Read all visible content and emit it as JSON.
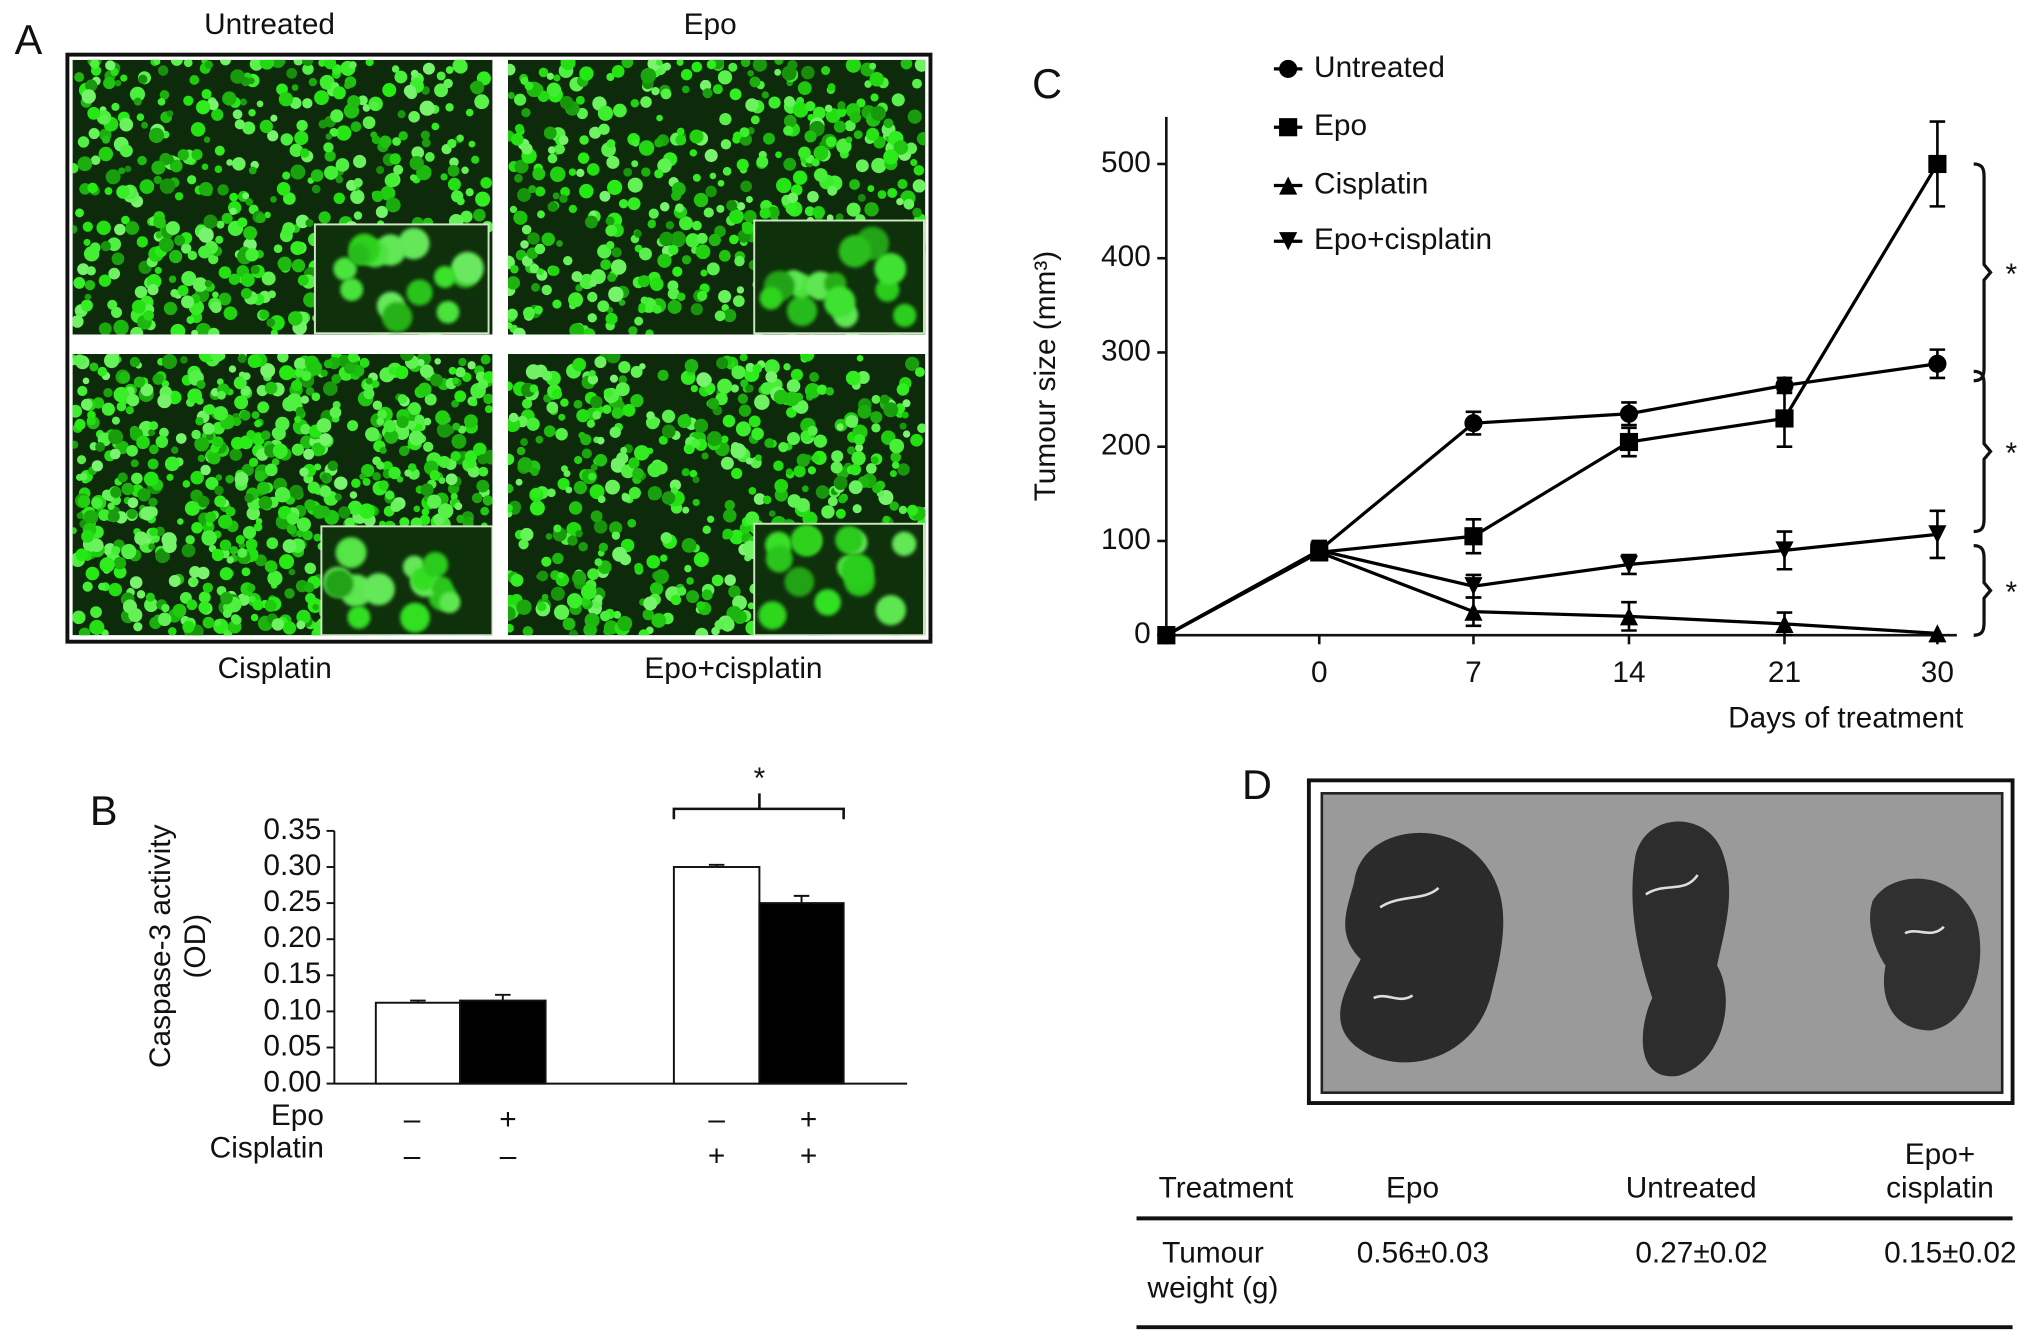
{
  "panels": [
    "A",
    "B",
    "C",
    "D"
  ],
  "micrographs": [
    "Untreated",
    "Epo",
    "Cisplatin",
    "Epo+cisplatin"
  ],
  "chart_data": [
    {
      "type": "bar",
      "y_label": [
        "Caspase-3 activity",
        "(OD)"
      ],
      "values": [
        0.112,
        0.115,
        0.3,
        0.25
      ],
      "errors": [
        0.003,
        0.008,
        0.003,
        0.01
      ],
      "colors": [
        "#ffffff",
        "#000000",
        "#ffffff",
        "#000000"
      ],
      "conditions": [
        {
          "name": "Epo",
          "signs": [
            "–",
            "+",
            "–",
            "+"
          ]
        },
        {
          "name": "Cisplatin",
          "signs": [
            "–",
            "–",
            "+",
            "+"
          ]
        }
      ],
      "ylim": [
        0,
        0.35
      ],
      "yticks": [
        {
          "value": 0,
          "label": "0.00"
        },
        0.05,
        {
          "value": 0.1,
          "label": "0.10"
        },
        0.15,
        {
          "value": 0.2,
          "label": "0.20"
        },
        0.25,
        {
          "value": 0.3,
          "label": "0.30"
        },
        0.35
      ],
      "annotation": "*"
    },
    {
      "type": "line",
      "x_label": "Days of treatment",
      "y_label": "Tumour size (mm³)",
      "categories": [
        null,
        "0",
        "7",
        "14",
        "21",
        "30"
      ],
      "series": [
        {
          "name": "Untreated",
          "marker": "circle",
          "color": "#000000",
          "values": [
            0,
            90,
            225,
            235,
            265,
            288
          ],
          "errors": [
            0,
            10,
            12,
            12,
            8,
            15
          ]
        },
        {
          "name": "Epo",
          "marker": "square",
          "color": "#000000",
          "values": [
            0,
            88,
            105,
            205,
            230,
            500
          ],
          "errors": [
            0,
            8,
            18,
            15,
            30,
            45
          ]
        },
        {
          "name": "Cisplatin",
          "marker": "triangle-up",
          "color": "#000000",
          "values": [
            0,
            88,
            25,
            20,
            12,
            2
          ],
          "errors": [
            0,
            8,
            15,
            15,
            12,
            0
          ]
        },
        {
          "name": "Epo+cisplatin",
          "marker": "triangle-down",
          "color": "#000000",
          "values": [
            0,
            90,
            52,
            75,
            90,
            107
          ],
          "errors": [
            0,
            8,
            12,
            10,
            20,
            25
          ]
        }
      ],
      "ylim": [
        0,
        550
      ],
      "yticks": [
        0,
        100,
        200,
        300,
        400,
        500
      ],
      "brackets": [
        {
          "label": "*",
          "range": [
            500,
            270
          ]
        },
        {
          "label": "*",
          "range": [
            280,
            110
          ]
        },
        {
          "label": "*",
          "range": [
            95,
            0
          ]
        }
      ]
    }
  ],
  "table": {
    "header": [
      [
        "Treatment"
      ],
      [
        "Epo"
      ],
      [
        "Untreated"
      ],
      [
        "Epo+",
        "cisplatin"
      ]
    ],
    "rows": [
      [
        [
          "Tumour",
          "weight (g)"
        ],
        [
          "0.56±0.03"
        ],
        [
          "0.27±0.02"
        ],
        [
          "0.15±0.02"
        ]
      ]
    ]
  }
}
